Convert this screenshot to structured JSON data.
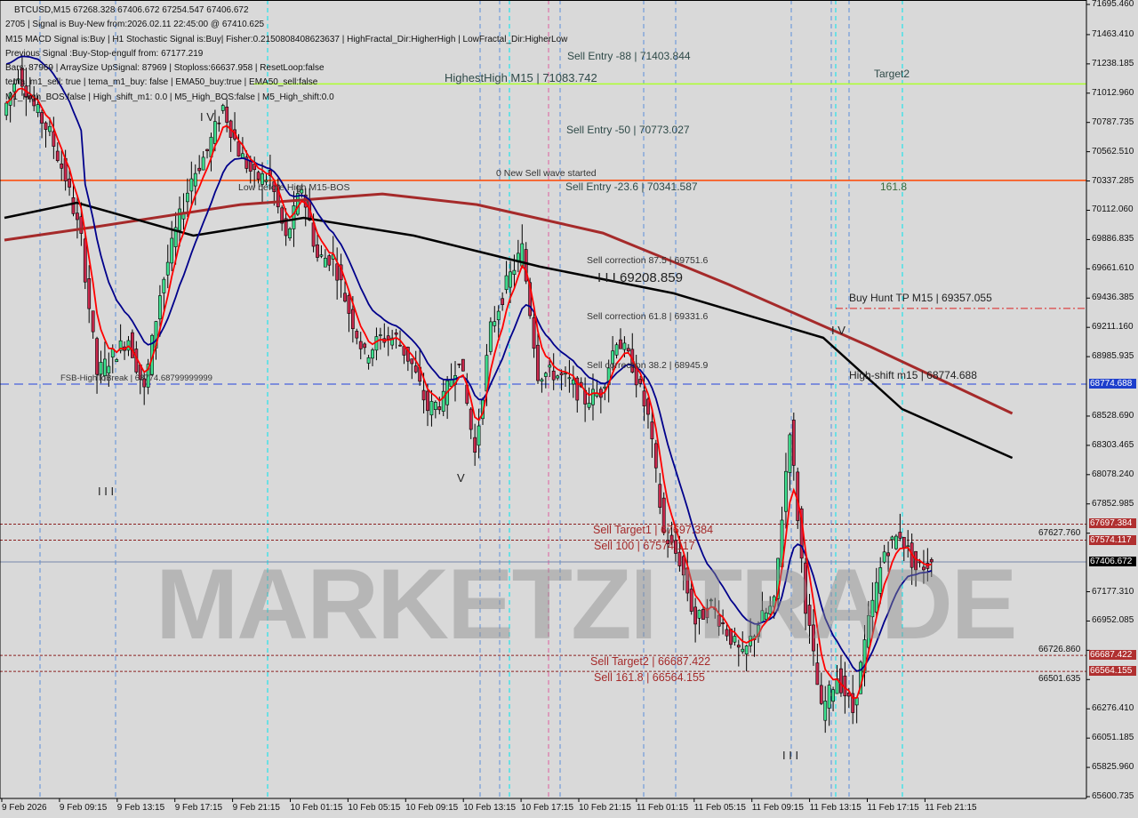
{
  "chart_data": {
    "type": "candlestick",
    "symbol": "BTCUSD,M15",
    "ohlc_header": "BTCUSD,M15  67268.328 67406.672 67254.547 67406.672",
    "ylim": [
      65600.735,
      71695.46
    ],
    "y_ticks": [
      "71695.460",
      "71463.410",
      "71238.185",
      "71012.960",
      "70787.735",
      "70562.510",
      "70337.285",
      "70112.060",
      "69886.835",
      "69661.610",
      "69436.385",
      "69211.160",
      "68985.935",
      "68528.690",
      "68303.465",
      "68078.240",
      "67852.985",
      "67627.760",
      "67177.310",
      "66952.085",
      "66726.860",
      "66501.635",
      "66276.410",
      "66051.185",
      "65825.960",
      "65600.735"
    ],
    "x_ticks": [
      "9 Feb 2026",
      "9 Feb 09:15",
      "9 Feb 13:15",
      "9 Feb 17:15",
      "9 Feb 21:15",
      "10 Feb 01:15",
      "10 Feb 05:15",
      "10 Feb 09:15",
      "10 Feb 13:15",
      "10 Feb 17:15",
      "10 Feb 21:15",
      "11 Feb 01:15",
      "11 Feb 05:15",
      "11 Feb 09:15",
      "11 Feb 13:15",
      "11 Feb 17:15",
      "11 Feb 21:15"
    ],
    "closes": [
      70843,
      71182,
      70909,
      70703,
      70362,
      69883,
      68857,
      68994,
      69130,
      68720,
      69472,
      69951,
      70362,
      70567,
      70909,
      70567,
      70362,
      70362,
      69883,
      70293,
      69746,
      69746,
      69336,
      68994,
      69130,
      69130,
      68925,
      68583,
      68652,
      68994,
      68241,
      69199,
      69541,
      69815,
      68857,
      68857,
      68789,
      68652,
      68720,
      69130,
      68925,
      68515,
      67625,
      67420,
      66941,
      67078,
      66873,
      66668,
      66941,
      67078,
      68446,
      67078,
      66257,
      66531,
      66257,
      66941,
      67488,
      67625,
      67351,
      67406.672
    ],
    "ma_black": [
      {
        "i": 0,
        "v": 70054
      },
      {
        "i": 4.6,
        "v": 70170
      },
      {
        "i": 12,
        "v": 69917
      },
      {
        "i": 19,
        "v": 70054
      },
      {
        "i": 26,
        "v": 69917
      },
      {
        "i": 34,
        "v": 69678
      },
      {
        "i": 42.5,
        "v": 69473
      },
      {
        "i": 52,
        "v": 69131
      },
      {
        "i": 57,
        "v": 68583
      },
      {
        "i": 64,
        "v": 68207
      }
    ],
    "ma_brown": [
      {
        "i": 0,
        "v": 69883
      },
      {
        "i": 5.8,
        "v": 69985
      },
      {
        "i": 15,
        "v": 70156
      },
      {
        "i": 24,
        "v": 70238
      },
      {
        "i": 30,
        "v": 70156
      },
      {
        "i": 38,
        "v": 69937
      },
      {
        "i": 46,
        "v": 69541
      },
      {
        "i": 55,
        "v": 69062
      },
      {
        "i": 64,
        "v": 68549
      }
    ],
    "levels": [
      {
        "price": 71083.742,
        "color": "#adff2f",
        "style": "solid"
      },
      {
        "price": 70341.587,
        "color": "#ff4500",
        "style": "solid"
      },
      {
        "price": 69357.055,
        "color": "#dd2222",
        "style": "dashdot"
      },
      {
        "price": 68774.688,
        "color": "#2244dd",
        "style": "dashed"
      },
      {
        "price": 67697.384,
        "color": "#8b2020",
        "style": "dotted"
      },
      {
        "price": 67574.117,
        "color": "#8b2020",
        "style": "dotted"
      },
      {
        "price": 67406.672,
        "color": "#7788aa",
        "style": "solid"
      },
      {
        "price": 66687.422,
        "color": "#8b2020",
        "style": "dotted"
      },
      {
        "price": 66564.155,
        "color": "#8b2020",
        "style": "dotted"
      }
    ],
    "axis_badges": [
      {
        "label": "68774.688",
        "color": "#1e3fcc"
      },
      {
        "label": "67697.384",
        "color": "#b03030"
      },
      {
        "label": "67574.117",
        "color": "#b03030"
      },
      {
        "label": "67406.672",
        "color": "#000000"
      },
      {
        "label": "66687.422",
        "color": "#b03030"
      },
      {
        "label": "66564.155",
        "color": "#b03030"
      }
    ],
    "colors": {
      "bull": "#3ee08f",
      "bear": "#c8284c",
      "fast_ma": "#ff0000",
      "ema50": "#00008b",
      "ma_black": "#000000",
      "ma_brown": "#a52a2a",
      "background": "#d9d9d9"
    }
  },
  "info_lines": [
    "2705 | Signal is Buy-New from:2026.02.11 22:45:00 @ 67410.625",
    "M15 MACD Signal is:Buy | H1 Stochastic Signal is:Buy| Fisher:0.2150808408623637 | HighFractal_Dir:HigherHigh | LowFractal_Dir:HigherLow",
    "Previous Signal :Buy-Stop-engulf from: 67177.219",
    "Bars: 87969 | ArraySize UpSignal: 87969 | Stoploss:66637.958 | ResetLoop:false",
    "tema_m1_sell: true | tema_m1_buy: false | EMA50_buy:true | EMA50_sell:false",
    "M1_High_BOS:false | High_shift_m1: 0.0 | M5_High_BOS:false | M5_High_shift:0.0"
  ],
  "annotations": {
    "highest_high": "HighestHigh  M15 | 71083.742",
    "target2": "Target2",
    "sell_entry_88": "Sell Entry -88 | 71403.844",
    "sell_entry_50": "Sell Entry -50 | 70773.027",
    "sell_entry_236": "Sell Entry -23.6 | 70341.587",
    "new_sell_wave": "0 New Sell wave started",
    "fib_1618": "161.8",
    "low_before_high": "Low before High  M15-BOS",
    "sell_corr_875": "Sell correction 87.5 | 69751.6",
    "iii_level": "I I I 69208.859",
    "sell_corr_618": "Sell correction 61.8 | 69331.6",
    "sell_corr_382": "Sell correction 38.2 | 68945.9",
    "buy_hunt": "Buy Hunt TP M15 | 69357.055",
    "high_shift": "High-shift m15 | 68774.688",
    "fsb": "FSB-HighToBreak | 68774.68799999999",
    "sell_target1": "Sell Target1 | 67697.384",
    "sell_100": "Sell 100 | 67574.117",
    "sell_target2": "Sell Target2 | 66687.422",
    "sell_1618": "Sell 161.8 | 66564.155",
    "wave_iv_1": "I V",
    "wave_iv_2": "I V",
    "wave_iii_1": "I I I",
    "wave_iii_2": "I I I",
    "wave_v": "V"
  },
  "watermark": "MARKETZI TRADE"
}
